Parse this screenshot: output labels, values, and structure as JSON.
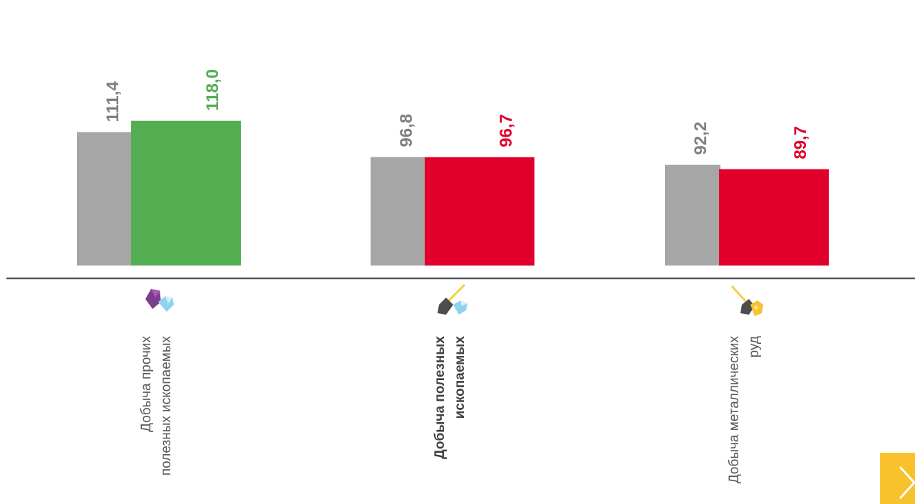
{
  "chart_data": {
    "type": "bar",
    "categories": [
      {
        "lines": [
          "Добыча прочих",
          "полезных ископаемых"
        ],
        "bold": false,
        "icon": "gems-icon"
      },
      {
        "lines": [
          "Добыча полезных",
          "ископаемых"
        ],
        "bold": true,
        "icon": "shovel-diamond-icon"
      },
      {
        "lines": [
          "Добыча металлических",
          "руд"
        ],
        "bold": false,
        "icon": "shovel-ore-icon"
      }
    ],
    "series": [
      {
        "values": [
          111.4,
          96.8,
          92.2
        ],
        "labels": [
          "111,4",
          "96,8",
          "92,2"
        ],
        "color": "#a6a6a6",
        "label_color": "#7f7f7f"
      },
      {
        "values": [
          118.0,
          96.7,
          89.7
        ],
        "labels": [
          "118,0",
          "96,7",
          "89,7"
        ],
        "colors": [
          "#52ae50",
          "#e0002b",
          "#e0002b"
        ]
      }
    ],
    "ylim": [
      0,
      120
    ],
    "grid": false,
    "legend": "none"
  },
  "nav": {
    "next_icon": "chevron-right-icon",
    "next_color": "#f7c22b"
  }
}
